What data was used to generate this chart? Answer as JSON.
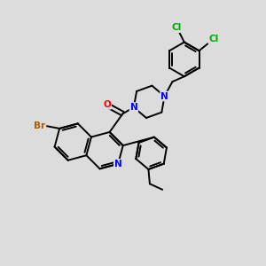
{
  "bg_color": "#dcdcdc",
  "bond_color": "#000000",
  "bond_width": 1.4,
  "atom_colors": {
    "N": "#0000ff",
    "O": "#ff0000",
    "Br": "#b35900",
    "Cl": "#00aa00",
    "C": "#000000"
  },
  "font_size": 7.5
}
